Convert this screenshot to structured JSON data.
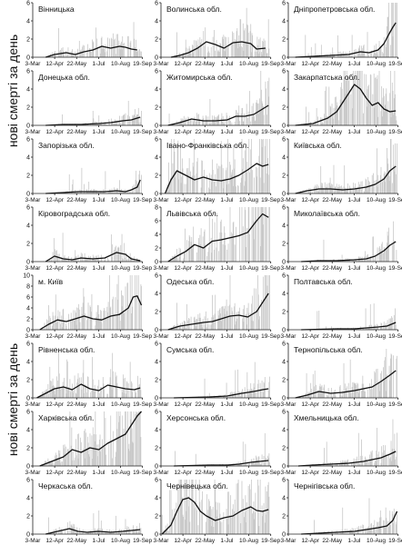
{
  "y_axis_label": "нові смерті за день",
  "x_ticks": [
    "3-Mar",
    "12-Apr",
    "22-May",
    "1-Jul",
    "10-Aug",
    "19-Sep"
  ],
  "colors": {
    "bars": "#c8c8c8",
    "line": "#111111",
    "axis": "#222222"
  },
  "chart_data": [
    {
      "type": "bar",
      "title": "Вінницька",
      "ylim": [
        0,
        6
      ],
      "yticks": [
        0,
        2,
        4,
        6
      ],
      "line": [
        [
          60,
          0
        ],
        [
          75,
          0.3
        ],
        [
          95,
          0.5
        ],
        [
          110,
          0.3
        ],
        [
          125,
          0.6
        ],
        [
          140,
          0.8
        ],
        [
          155,
          1.2
        ],
        [
          170,
          1.0
        ],
        [
          185,
          1.2
        ],
        [
          195,
          1.1
        ],
        [
          205,
          0.9
        ],
        [
          215,
          0.8
        ]
      ]
    },
    {
      "type": "bar",
      "title": "Волинська обл.",
      "ylim": [
        0,
        6
      ],
      "yticks": [
        0,
        2,
        4,
        6
      ],
      "line": [
        [
          55,
          0
        ],
        [
          70,
          0.2
        ],
        [
          85,
          0.5
        ],
        [
          100,
          1.0
        ],
        [
          115,
          1.7
        ],
        [
          130,
          1.4
        ],
        [
          145,
          1.0
        ],
        [
          160,
          1.6
        ],
        [
          175,
          1.7
        ],
        [
          190,
          1.5
        ],
        [
          200,
          0.9
        ],
        [
          215,
          1.0
        ]
      ]
    },
    {
      "type": "bar",
      "title": "Дніпропетровська обл.",
      "ylim": [
        0,
        6
      ],
      "yticks": [
        0,
        2,
        4,
        6
      ],
      "line": [
        [
          50,
          0
        ],
        [
          80,
          0.1
        ],
        [
          110,
          0.2
        ],
        [
          140,
          0.3
        ],
        [
          160,
          0.6
        ],
        [
          175,
          0.5
        ],
        [
          190,
          0.8
        ],
        [
          200,
          1.5
        ],
        [
          208,
          2.5
        ],
        [
          215,
          3.3
        ],
        [
          220,
          3.8
        ]
      ]
    },
    {
      "type": "bar",
      "title": "Донецька обл.",
      "ylim": [
        0,
        6
      ],
      "yticks": [
        0,
        2,
        4,
        6
      ],
      "line": [
        [
          60,
          0
        ],
        [
          90,
          0.1
        ],
        [
          120,
          0.1
        ],
        [
          150,
          0.2
        ],
        [
          170,
          0.3
        ],
        [
          190,
          0.5
        ],
        [
          205,
          0.6
        ],
        [
          220,
          0.9
        ]
      ]
    },
    {
      "type": "bar",
      "title": "Житомирська обл.",
      "ylim": [
        0,
        6
      ],
      "yticks": [
        0,
        2,
        4,
        6
      ],
      "line": [
        [
          50,
          0
        ],
        [
          70,
          0.3
        ],
        [
          90,
          0.7
        ],
        [
          110,
          0.5
        ],
        [
          130,
          0.5
        ],
        [
          150,
          0.6
        ],
        [
          165,
          1.0
        ],
        [
          180,
          1.0
        ],
        [
          195,
          1.2
        ],
        [
          210,
          1.8
        ],
        [
          220,
          2.2
        ]
      ]
    },
    {
      "type": "bar",
      "title": "Закарпатська обл.",
      "ylim": [
        0,
        6
      ],
      "yticks": [
        0,
        2,
        4,
        6
      ],
      "line": [
        [
          50,
          0
        ],
        [
          80,
          0.2
        ],
        [
          105,
          0.8
        ],
        [
          120,
          1.5
        ],
        [
          130,
          2.5
        ],
        [
          140,
          3.5
        ],
        [
          150,
          4.5
        ],
        [
          160,
          4.0
        ],
        [
          170,
          3.0
        ],
        [
          180,
          2.2
        ],
        [
          190,
          2.5
        ],
        [
          200,
          1.8
        ],
        [
          210,
          1.5
        ],
        [
          220,
          1.6
        ]
      ]
    },
    {
      "type": "bar",
      "title": "Запорізька обл.",
      "ylim": [
        0,
        6
      ],
      "yticks": [
        0,
        2,
        4,
        6
      ],
      "line": [
        [
          60,
          0
        ],
        [
          90,
          0.1
        ],
        [
          115,
          0.2
        ],
        [
          140,
          0.2
        ],
        [
          160,
          0.2
        ],
        [
          180,
          0.3
        ],
        [
          195,
          0.2
        ],
        [
          205,
          0.4
        ],
        [
          215,
          0.7
        ],
        [
          220,
          1.5
        ]
      ]
    },
    {
      "type": "bar",
      "title": "Івано-Франківська обл.",
      "ylim": [
        0,
        6
      ],
      "yticks": [
        0,
        2,
        4,
        6
      ],
      "line": [
        [
          45,
          0
        ],
        [
          55,
          1.5
        ],
        [
          65,
          2.5
        ],
        [
          80,
          2.0
        ],
        [
          95,
          1.5
        ],
        [
          110,
          1.8
        ],
        [
          125,
          1.5
        ],
        [
          140,
          1.4
        ],
        [
          155,
          1.6
        ],
        [
          170,
          2.0
        ],
        [
          185,
          2.6
        ],
        [
          200,
          3.3
        ],
        [
          210,
          3.0
        ],
        [
          220,
          3.2
        ]
      ]
    },
    {
      "type": "bar",
      "title": "Київська обл.",
      "ylim": [
        0,
        6
      ],
      "yticks": [
        0,
        2,
        4,
        6
      ],
      "line": [
        [
          50,
          0
        ],
        [
          70,
          0.3
        ],
        [
          90,
          0.5
        ],
        [
          110,
          0.5
        ],
        [
          130,
          0.4
        ],
        [
          150,
          0.5
        ],
        [
          170,
          0.7
        ],
        [
          185,
          1.0
        ],
        [
          200,
          1.6
        ],
        [
          210,
          2.5
        ],
        [
          220,
          3.0
        ]
      ]
    },
    {
      "type": "bar",
      "title": "Кіровоградська обл.",
      "ylim": [
        0,
        6
      ],
      "yticks": [
        0,
        2,
        4,
        6
      ],
      "line": [
        [
          60,
          0
        ],
        [
          75,
          0.6
        ],
        [
          90,
          0.3
        ],
        [
          105,
          0.2
        ],
        [
          120,
          0.4
        ],
        [
          140,
          0.3
        ],
        [
          160,
          0.4
        ],
        [
          180,
          1.0
        ],
        [
          195,
          0.8
        ],
        [
          205,
          0.3
        ],
        [
          220,
          0.1
        ]
      ]
    },
    {
      "type": "bar",
      "title": "Львівська обл.",
      "ylim": [
        0,
        8
      ],
      "yticks": [
        0,
        2,
        4,
        6,
        8
      ],
      "line": [
        [
          50,
          0
        ],
        [
          65,
          0.8
        ],
        [
          80,
          1.5
        ],
        [
          95,
          2.5
        ],
        [
          110,
          2.0
        ],
        [
          125,
          3.0
        ],
        [
          140,
          3.2
        ],
        [
          155,
          3.5
        ],
        [
          170,
          3.8
        ],
        [
          185,
          4.3
        ],
        [
          200,
          6.0
        ],
        [
          210,
          7.0
        ],
        [
          220,
          6.5
        ]
      ]
    },
    {
      "type": "bar",
      "title": "Миколаївська обл.",
      "ylim": [
        0,
        6
      ],
      "yticks": [
        0,
        2,
        4,
        6
      ],
      "line": [
        [
          60,
          0
        ],
        [
          90,
          0.1
        ],
        [
          120,
          0.1
        ],
        [
          150,
          0.2
        ],
        [
          170,
          0.3
        ],
        [
          185,
          0.6
        ],
        [
          200,
          1.2
        ],
        [
          210,
          1.8
        ],
        [
          220,
          2.2
        ]
      ]
    },
    {
      "type": "bar",
      "title": "м. Київ",
      "ylim": [
        0,
        10
      ],
      "yticks": [
        0,
        2,
        4,
        6,
        8,
        10
      ],
      "line": [
        [
          50,
          0
        ],
        [
          65,
          1.0
        ],
        [
          80,
          1.8
        ],
        [
          95,
          1.5
        ],
        [
          110,
          2.0
        ],
        [
          125,
          2.5
        ],
        [
          140,
          2.0
        ],
        [
          155,
          1.8
        ],
        [
          170,
          2.5
        ],
        [
          185,
          2.8
        ],
        [
          200,
          4.0
        ],
        [
          208,
          6.0
        ],
        [
          215,
          6.2
        ],
        [
          222,
          4.5
        ]
      ]
    },
    {
      "type": "bar",
      "title": "Одеська обл.",
      "ylim": [
        0,
        6
      ],
      "yticks": [
        0,
        2,
        4,
        6
      ],
      "line": [
        [
          50,
          0
        ],
        [
          70,
          0.4
        ],
        [
          90,
          0.6
        ],
        [
          110,
          0.8
        ],
        [
          125,
          0.9
        ],
        [
          140,
          1.2
        ],
        [
          155,
          1.5
        ],
        [
          170,
          1.6
        ],
        [
          185,
          1.4
        ],
        [
          200,
          2.0
        ],
        [
          210,
          3.0
        ],
        [
          220,
          4.0
        ]
      ]
    },
    {
      "type": "bar",
      "title": "Полтавська обл.",
      "ylim": [
        0,
        6
      ],
      "yticks": [
        0,
        2,
        4,
        6
      ],
      "line": [
        [
          60,
          0
        ],
        [
          90,
          0.05
        ],
        [
          120,
          0.1
        ],
        [
          150,
          0.1
        ],
        [
          170,
          0.2
        ],
        [
          190,
          0.3
        ],
        [
          205,
          0.4
        ],
        [
          220,
          0.8
        ]
      ]
    },
    {
      "type": "bar",
      "title": "Рівненська обл.",
      "ylim": [
        0,
        6
      ],
      "yticks": [
        0,
        2,
        4,
        6
      ],
      "line": [
        [
          45,
          0
        ],
        [
          60,
          0.5
        ],
        [
          75,
          1.0
        ],
        [
          90,
          1.2
        ],
        [
          105,
          0.9
        ],
        [
          120,
          1.5
        ],
        [
          135,
          1.0
        ],
        [
          150,
          0.8
        ],
        [
          165,
          1.4
        ],
        [
          180,
          1.2
        ],
        [
          195,
          1.0
        ],
        [
          210,
          0.9
        ],
        [
          220,
          1.1
        ]
      ]
    },
    {
      "type": "bar",
      "title": "Сумська обл.",
      "ylim": [
        0,
        6
      ],
      "yticks": [
        0,
        2,
        4,
        6
      ],
      "line": [
        [
          60,
          0
        ],
        [
          90,
          0.05
        ],
        [
          120,
          0.1
        ],
        [
          150,
          0.2
        ],
        [
          175,
          0.5
        ],
        [
          195,
          0.7
        ],
        [
          210,
          0.9
        ],
        [
          220,
          1.0
        ]
      ]
    },
    {
      "type": "bar",
      "title": "Тернопільська обл.",
      "ylim": [
        0,
        6
      ],
      "yticks": [
        0,
        2,
        4,
        6
      ],
      "line": [
        [
          50,
          0
        ],
        [
          70,
          0.3
        ],
        [
          90,
          0.7
        ],
        [
          110,
          0.5
        ],
        [
          130,
          0.6
        ],
        [
          150,
          0.8
        ],
        [
          165,
          1.0
        ],
        [
          180,
          1.2
        ],
        [
          195,
          1.8
        ],
        [
          210,
          2.5
        ],
        [
          220,
          3.0
        ]
      ]
    },
    {
      "type": "bar",
      "title": "Харківська обл.",
      "ylim": [
        0,
        6
      ],
      "yticks": [
        0,
        2,
        4,
        6
      ],
      "line": [
        [
          50,
          0
        ],
        [
          70,
          0.5
        ],
        [
          90,
          1.0
        ],
        [
          105,
          1.8
        ],
        [
          120,
          1.5
        ],
        [
          135,
          2.0
        ],
        [
          150,
          1.8
        ],
        [
          165,
          2.5
        ],
        [
          180,
          3.0
        ],
        [
          195,
          3.5
        ],
        [
          205,
          4.5
        ],
        [
          215,
          5.5
        ],
        [
          222,
          6.0
        ]
      ]
    },
    {
      "type": "bar",
      "title": "Херсонська обл.",
      "ylim": [
        0,
        6
      ],
      "yticks": [
        0,
        2,
        4,
        6
      ],
      "line": [
        [
          60,
          0
        ],
        [
          90,
          0.05
        ],
        [
          120,
          0.1
        ],
        [
          150,
          0.1
        ],
        [
          170,
          0.2
        ],
        [
          190,
          0.4
        ],
        [
          205,
          0.5
        ],
        [
          220,
          0.6
        ]
      ]
    },
    {
      "type": "bar",
      "title": "Хмельницька обл.",
      "ylim": [
        0,
        6
      ],
      "yticks": [
        0,
        2,
        4,
        6
      ],
      "line": [
        [
          55,
          0
        ],
        [
          80,
          0.1
        ],
        [
          110,
          0.2
        ],
        [
          140,
          0.3
        ],
        [
          165,
          0.5
        ],
        [
          180,
          0.7
        ],
        [
          195,
          0.9
        ],
        [
          210,
          1.3
        ],
        [
          220,
          1.6
        ]
      ]
    },
    {
      "type": "bar",
      "title": "Черкаська обл.",
      "ylim": [
        0,
        6
      ],
      "yticks": [
        0,
        2,
        4,
        6
      ],
      "line": [
        [
          60,
          0
        ],
        [
          80,
          0.3
        ],
        [
          100,
          0.6
        ],
        [
          115,
          0.3
        ],
        [
          130,
          0.2
        ],
        [
          150,
          0.3
        ],
        [
          170,
          0.2
        ],
        [
          190,
          0.3
        ],
        [
          205,
          0.4
        ],
        [
          220,
          0.5
        ]
      ]
    },
    {
      "type": "bar",
      "title": "Чернівецька обл.",
      "ylim": [
        0,
        6
      ],
      "yticks": [
        0,
        2,
        4,
        6
      ],
      "line": [
        [
          40,
          0
        ],
        [
          55,
          1.0
        ],
        [
          65,
          2.5
        ],
        [
          75,
          3.8
        ],
        [
          85,
          4.0
        ],
        [
          95,
          3.5
        ],
        [
          105,
          2.5
        ],
        [
          115,
          2.0
        ],
        [
          130,
          1.5
        ],
        [
          145,
          1.8
        ],
        [
          160,
          2.0
        ],
        [
          175,
          2.6
        ],
        [
          190,
          3.0
        ],
        [
          200,
          2.6
        ],
        [
          210,
          2.5
        ],
        [
          220,
          2.7
        ]
      ]
    },
    {
      "type": "bar",
      "title": "Чернігівська обл.",
      "ylim": [
        0,
        6
      ],
      "yticks": [
        0,
        2,
        4,
        6
      ],
      "line": [
        [
          60,
          0
        ],
        [
          90,
          0.1
        ],
        [
          120,
          0.2
        ],
        [
          150,
          0.3
        ],
        [
          170,
          0.5
        ],
        [
          190,
          0.7
        ],
        [
          205,
          0.9
        ],
        [
          215,
          1.5
        ],
        [
          222,
          2.5
        ]
      ]
    }
  ]
}
